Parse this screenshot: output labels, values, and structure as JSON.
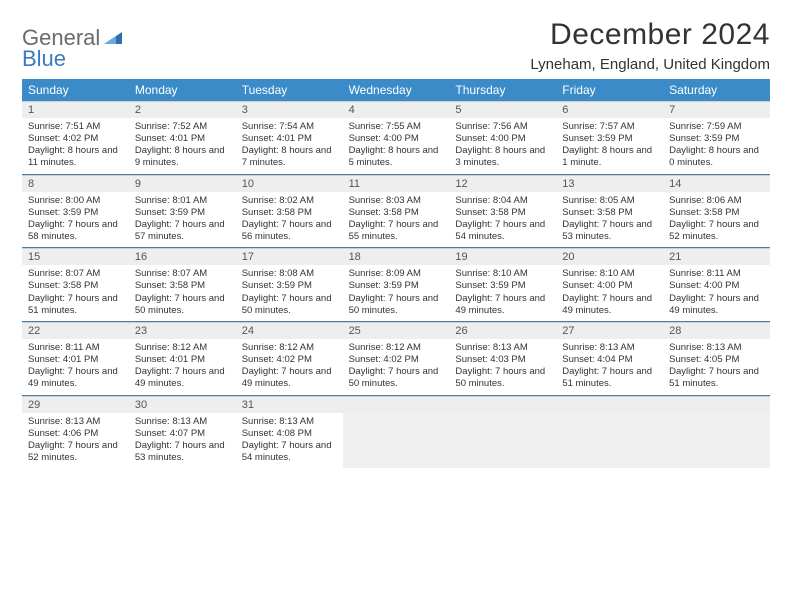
{
  "logo": {
    "line1": "General",
    "line2": "Blue"
  },
  "title": "December 2024",
  "location": "Lyneham, England, United Kingdom",
  "colors": {
    "header_bg": "#3b8bc9",
    "header_text": "#ffffff",
    "daynum_bg": "#eeeeee",
    "week_border": "#4b7fa8",
    "logo_gray": "#6b6b6b",
    "logo_blue": "#3b7bbf"
  },
  "day_headers": [
    "Sunday",
    "Monday",
    "Tuesday",
    "Wednesday",
    "Thursday",
    "Friday",
    "Saturday"
  ],
  "weeks": [
    [
      {
        "n": "1",
        "sunrise": "Sunrise: 7:51 AM",
        "sunset": "Sunset: 4:02 PM",
        "day": "Daylight: 8 hours and 11 minutes."
      },
      {
        "n": "2",
        "sunrise": "Sunrise: 7:52 AM",
        "sunset": "Sunset: 4:01 PM",
        "day": "Daylight: 8 hours and 9 minutes."
      },
      {
        "n": "3",
        "sunrise": "Sunrise: 7:54 AM",
        "sunset": "Sunset: 4:01 PM",
        "day": "Daylight: 8 hours and 7 minutes."
      },
      {
        "n": "4",
        "sunrise": "Sunrise: 7:55 AM",
        "sunset": "Sunset: 4:00 PM",
        "day": "Daylight: 8 hours and 5 minutes."
      },
      {
        "n": "5",
        "sunrise": "Sunrise: 7:56 AM",
        "sunset": "Sunset: 4:00 PM",
        "day": "Daylight: 8 hours and 3 minutes."
      },
      {
        "n": "6",
        "sunrise": "Sunrise: 7:57 AM",
        "sunset": "Sunset: 3:59 PM",
        "day": "Daylight: 8 hours and 1 minute."
      },
      {
        "n": "7",
        "sunrise": "Sunrise: 7:59 AM",
        "sunset": "Sunset: 3:59 PM",
        "day": "Daylight: 8 hours and 0 minutes."
      }
    ],
    [
      {
        "n": "8",
        "sunrise": "Sunrise: 8:00 AM",
        "sunset": "Sunset: 3:59 PM",
        "day": "Daylight: 7 hours and 58 minutes."
      },
      {
        "n": "9",
        "sunrise": "Sunrise: 8:01 AM",
        "sunset": "Sunset: 3:59 PM",
        "day": "Daylight: 7 hours and 57 minutes."
      },
      {
        "n": "10",
        "sunrise": "Sunrise: 8:02 AM",
        "sunset": "Sunset: 3:58 PM",
        "day": "Daylight: 7 hours and 56 minutes."
      },
      {
        "n": "11",
        "sunrise": "Sunrise: 8:03 AM",
        "sunset": "Sunset: 3:58 PM",
        "day": "Daylight: 7 hours and 55 minutes."
      },
      {
        "n": "12",
        "sunrise": "Sunrise: 8:04 AM",
        "sunset": "Sunset: 3:58 PM",
        "day": "Daylight: 7 hours and 54 minutes."
      },
      {
        "n": "13",
        "sunrise": "Sunrise: 8:05 AM",
        "sunset": "Sunset: 3:58 PM",
        "day": "Daylight: 7 hours and 53 minutes."
      },
      {
        "n": "14",
        "sunrise": "Sunrise: 8:06 AM",
        "sunset": "Sunset: 3:58 PM",
        "day": "Daylight: 7 hours and 52 minutes."
      }
    ],
    [
      {
        "n": "15",
        "sunrise": "Sunrise: 8:07 AM",
        "sunset": "Sunset: 3:58 PM",
        "day": "Daylight: 7 hours and 51 minutes."
      },
      {
        "n": "16",
        "sunrise": "Sunrise: 8:07 AM",
        "sunset": "Sunset: 3:58 PM",
        "day": "Daylight: 7 hours and 50 minutes."
      },
      {
        "n": "17",
        "sunrise": "Sunrise: 8:08 AM",
        "sunset": "Sunset: 3:59 PM",
        "day": "Daylight: 7 hours and 50 minutes."
      },
      {
        "n": "18",
        "sunrise": "Sunrise: 8:09 AM",
        "sunset": "Sunset: 3:59 PM",
        "day": "Daylight: 7 hours and 50 minutes."
      },
      {
        "n": "19",
        "sunrise": "Sunrise: 8:10 AM",
        "sunset": "Sunset: 3:59 PM",
        "day": "Daylight: 7 hours and 49 minutes."
      },
      {
        "n": "20",
        "sunrise": "Sunrise: 8:10 AM",
        "sunset": "Sunset: 4:00 PM",
        "day": "Daylight: 7 hours and 49 minutes."
      },
      {
        "n": "21",
        "sunrise": "Sunrise: 8:11 AM",
        "sunset": "Sunset: 4:00 PM",
        "day": "Daylight: 7 hours and 49 minutes."
      }
    ],
    [
      {
        "n": "22",
        "sunrise": "Sunrise: 8:11 AM",
        "sunset": "Sunset: 4:01 PM",
        "day": "Daylight: 7 hours and 49 minutes."
      },
      {
        "n": "23",
        "sunrise": "Sunrise: 8:12 AM",
        "sunset": "Sunset: 4:01 PM",
        "day": "Daylight: 7 hours and 49 minutes."
      },
      {
        "n": "24",
        "sunrise": "Sunrise: 8:12 AM",
        "sunset": "Sunset: 4:02 PM",
        "day": "Daylight: 7 hours and 49 minutes."
      },
      {
        "n": "25",
        "sunrise": "Sunrise: 8:12 AM",
        "sunset": "Sunset: 4:02 PM",
        "day": "Daylight: 7 hours and 50 minutes."
      },
      {
        "n": "26",
        "sunrise": "Sunrise: 8:13 AM",
        "sunset": "Sunset: 4:03 PM",
        "day": "Daylight: 7 hours and 50 minutes."
      },
      {
        "n": "27",
        "sunrise": "Sunrise: 8:13 AM",
        "sunset": "Sunset: 4:04 PM",
        "day": "Daylight: 7 hours and 51 minutes."
      },
      {
        "n": "28",
        "sunrise": "Sunrise: 8:13 AM",
        "sunset": "Sunset: 4:05 PM",
        "day": "Daylight: 7 hours and 51 minutes."
      }
    ],
    [
      {
        "n": "29",
        "sunrise": "Sunrise: 8:13 AM",
        "sunset": "Sunset: 4:06 PM",
        "day": "Daylight: 7 hours and 52 minutes."
      },
      {
        "n": "30",
        "sunrise": "Sunrise: 8:13 AM",
        "sunset": "Sunset: 4:07 PM",
        "day": "Daylight: 7 hours and 53 minutes."
      },
      {
        "n": "31",
        "sunrise": "Sunrise: 8:13 AM",
        "sunset": "Sunset: 4:08 PM",
        "day": "Daylight: 7 hours and 54 minutes."
      },
      null,
      null,
      null,
      null
    ]
  ]
}
